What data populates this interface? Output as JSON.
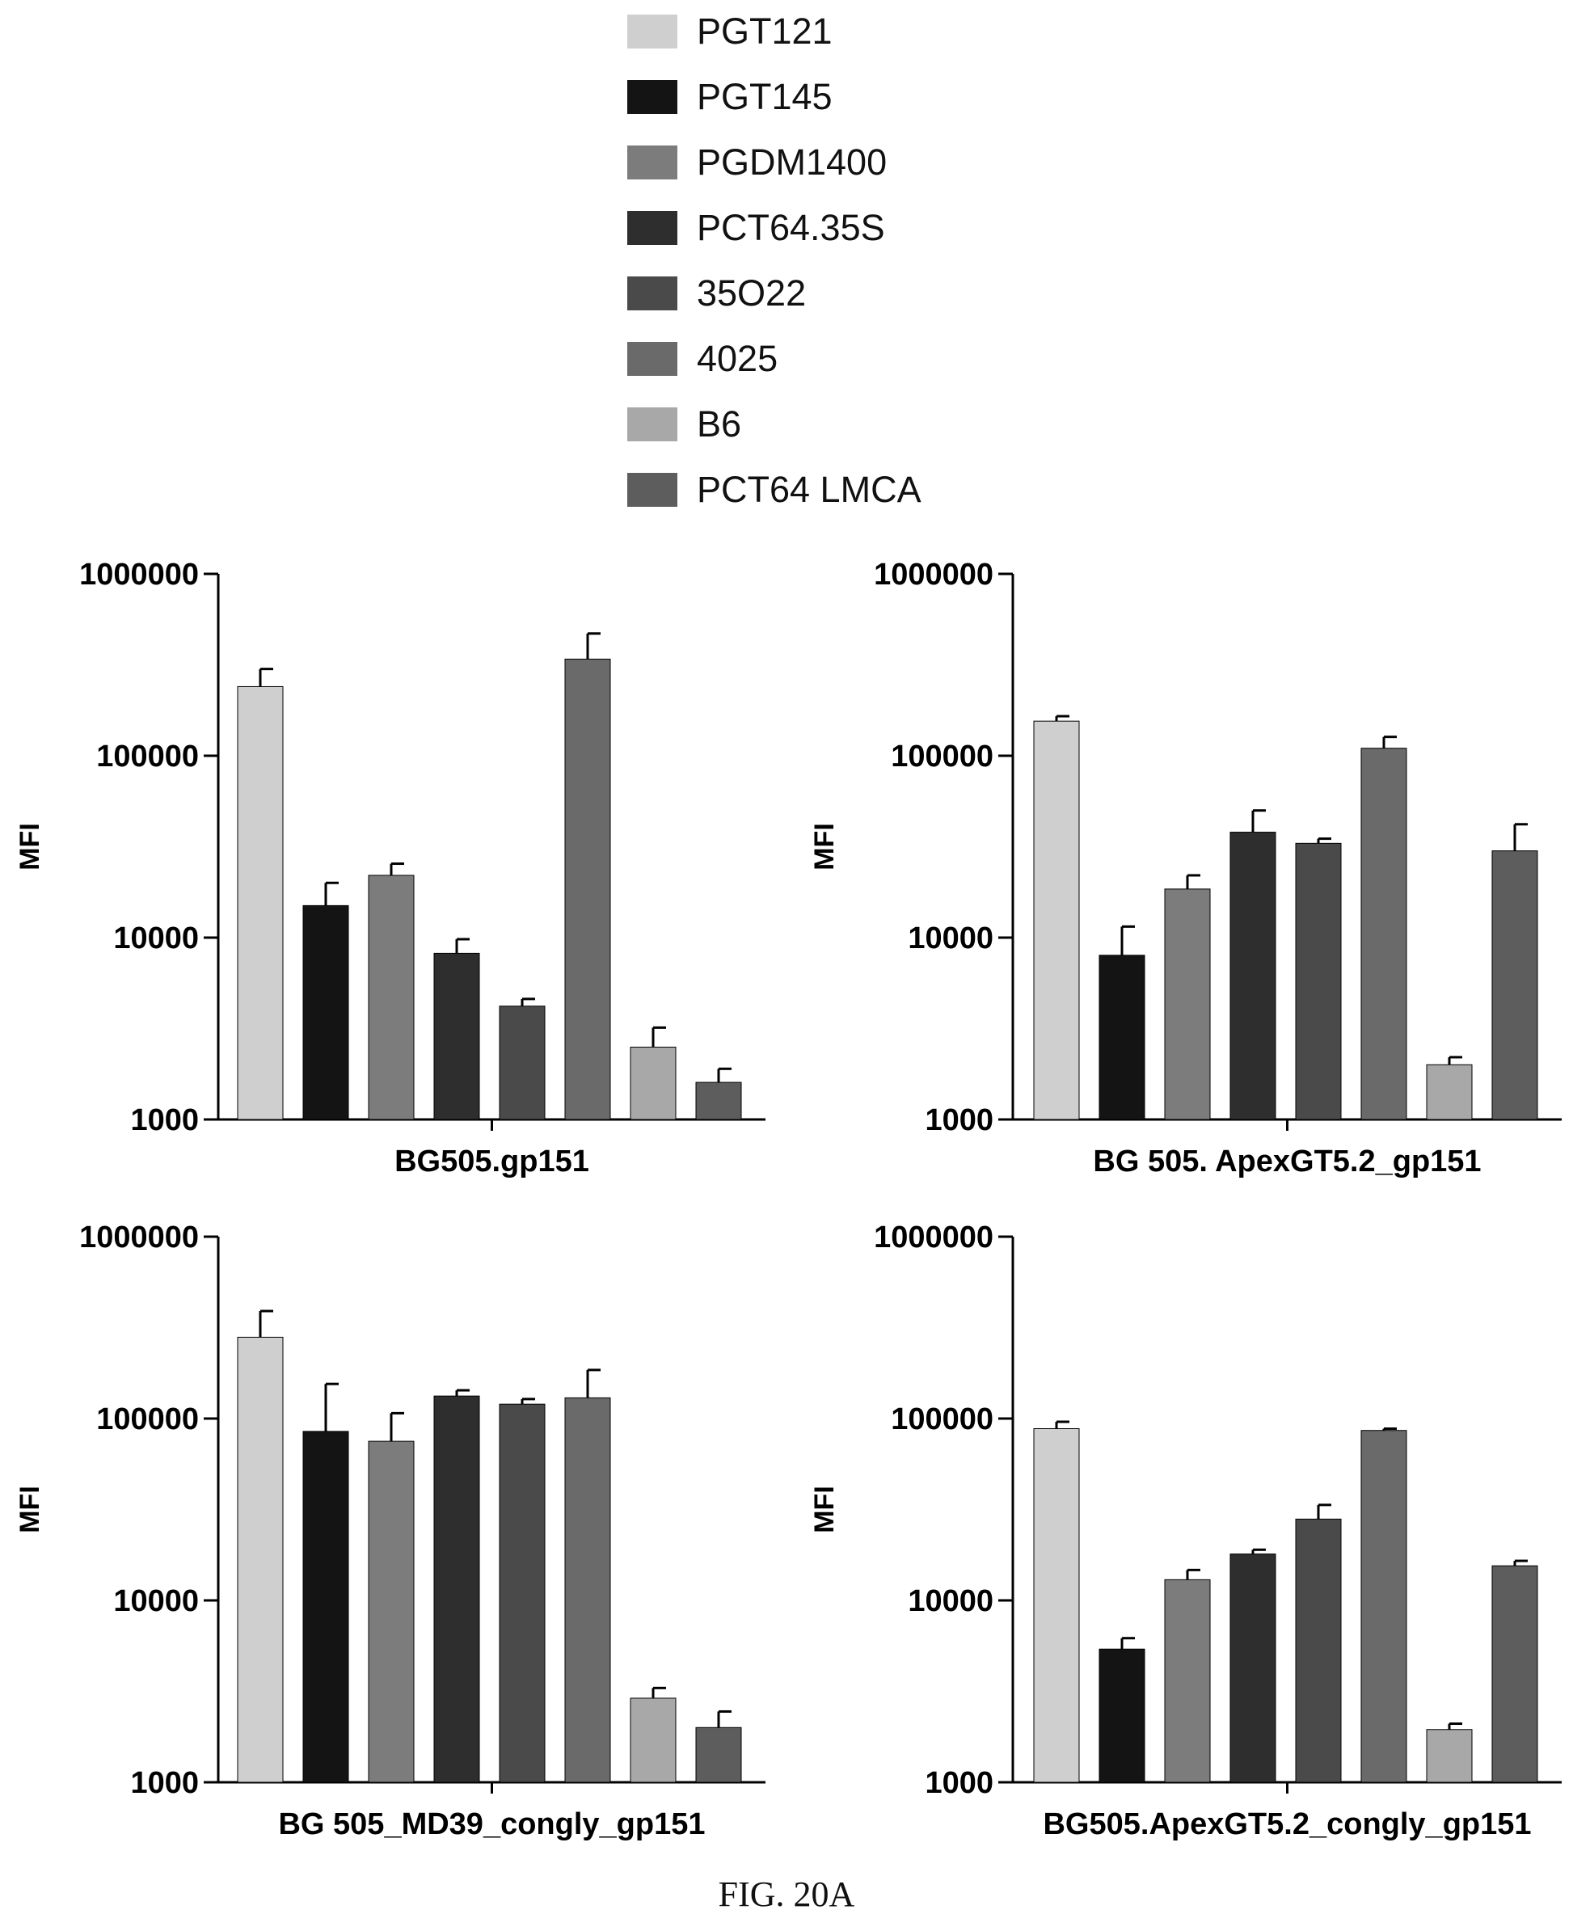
{
  "figure_caption": "FIG. 20A",
  "legend": [
    {
      "label": "PGT121",
      "color": "#cfcfcf"
    },
    {
      "label": "PGT145",
      "color": "#141414"
    },
    {
      "label": "PGDM1400",
      "color": "#7c7c7c"
    },
    {
      "label": "PCT64.35S",
      "color": "#2e2e2e"
    },
    {
      "label": "35O22",
      "color": "#4a4a4a"
    },
    {
      "label": "4025",
      "color": "#6a6a6a"
    },
    {
      "label": "B6",
      "color": "#a8a8a8"
    },
    {
      "label": "PCT64 LMCA",
      "color": "#5d5d5d"
    }
  ],
  "chart_data": [
    {
      "type": "bar",
      "xlabel": "BG505.gp151",
      "ylabel": "MFI",
      "yscale": "log",
      "ylim": [
        1000,
        1000000
      ],
      "yticks": [
        "1000000",
        "100000",
        "10000",
        "1000"
      ],
      "series": [
        {
          "name": "PGT121",
          "value": 240000,
          "error": 60000
        },
        {
          "name": "PGT145",
          "value": 15000,
          "error": 5000
        },
        {
          "name": "PGDM1400",
          "value": 22000,
          "error": 3500
        },
        {
          "name": "PCT64.35S",
          "value": 8200,
          "error": 1600
        },
        {
          "name": "35O22",
          "value": 4200,
          "error": 400
        },
        {
          "name": "4025",
          "value": 340000,
          "error": 130000
        },
        {
          "name": "B6",
          "value": 2500,
          "error": 700
        },
        {
          "name": "PCT64 LMCA",
          "value": 1600,
          "error": 300
        }
      ]
    },
    {
      "type": "bar",
      "xlabel": "BG 505. ApexGT5.2_gp151",
      "ylabel": "MFI",
      "yscale": "log",
      "ylim": [
        1000,
        1000000
      ],
      "yticks": [
        "1000000",
        "100000",
        "10000",
        "1000"
      ],
      "series": [
        {
          "name": "PGT121",
          "value": 155000,
          "error": 10000
        },
        {
          "name": "PGT145",
          "value": 8000,
          "error": 3500
        },
        {
          "name": "PGDM1400",
          "value": 18500,
          "error": 3500
        },
        {
          "name": "PCT64.35S",
          "value": 38000,
          "error": 12000
        },
        {
          "name": "35O22",
          "value": 33000,
          "error": 2000
        },
        {
          "name": "4025",
          "value": 110000,
          "error": 17000
        },
        {
          "name": "B6",
          "value": 2000,
          "error": 200
        },
        {
          "name": "PCT64 LMCA",
          "value": 30000,
          "error": 12000
        }
      ]
    },
    {
      "type": "bar",
      "xlabel": "BG 505_MD39_congly_gp151",
      "ylabel": "MFI",
      "yscale": "log",
      "ylim": [
        1000,
        1000000
      ],
      "yticks": [
        "1000000",
        "100000",
        "10000",
        "1000"
      ],
      "series": [
        {
          "name": "PGT121",
          "value": 280000,
          "error": 110000
        },
        {
          "name": "PGT145",
          "value": 85000,
          "error": 70000
        },
        {
          "name": "PGDM1400",
          "value": 75000,
          "error": 32000
        },
        {
          "name": "PCT64.35S",
          "value": 133000,
          "error": 10000
        },
        {
          "name": "35O22",
          "value": 120000,
          "error": 8000
        },
        {
          "name": "4025",
          "value": 130000,
          "error": 55000
        },
        {
          "name": "B6",
          "value": 2900,
          "error": 400
        },
        {
          "name": "PCT64 LMCA",
          "value": 2000,
          "error": 450
        }
      ]
    },
    {
      "type": "bar",
      "xlabel": "BG505.ApexGT5.2_congly_gp151",
      "ylabel": "MFI",
      "yscale": "log",
      "ylim": [
        1000,
        1000000
      ],
      "yticks": [
        "1000000",
        "100000",
        "10000",
        "1000"
      ],
      "series": [
        {
          "name": "PGT121",
          "value": 88000,
          "error": 8000
        },
        {
          "name": "PGT145",
          "value": 5400,
          "error": 800
        },
        {
          "name": "PGDM1400",
          "value": 13000,
          "error": 1700
        },
        {
          "name": "PCT64.35S",
          "value": 18000,
          "error": 1000
        },
        {
          "name": "35O22",
          "value": 28000,
          "error": 5500
        },
        {
          "name": "4025",
          "value": 86000,
          "error": 2000
        },
        {
          "name": "B6",
          "value": 1950,
          "error": 150
        },
        {
          "name": "PCT64 LMCA",
          "value": 15500,
          "error": 1000
        }
      ]
    }
  ]
}
